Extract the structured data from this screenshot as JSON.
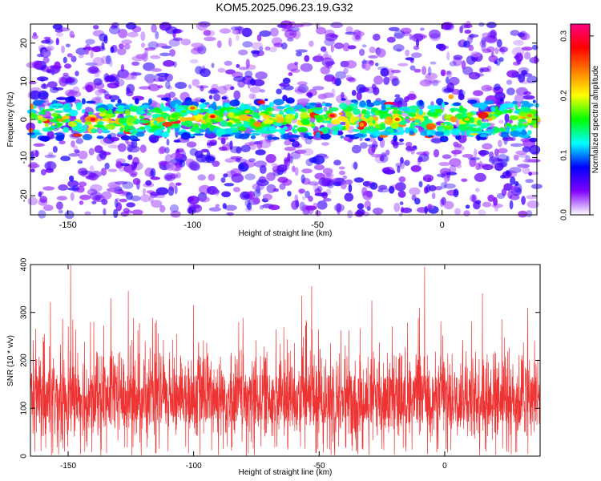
{
  "chart_data": [
    {
      "type": "heatmap",
      "title": "KOM5.2025.096.23.19.G32",
      "xlabel": "Height of straight line (km)",
      "ylabel": "Frequency (Hz)",
      "xlim": [
        -165,
        38
      ],
      "ylim": [
        -25,
        25
      ],
      "xticks": [
        -150,
        -100,
        -50,
        0
      ],
      "yticks": [
        -20,
        -10,
        0,
        10,
        20
      ],
      "band_center_hz": 0,
      "band_halfwidth_hz": 5,
      "peak_amplitude": 0.3,
      "colorbar": {
        "label": "Normalized spectral amplitude",
        "range": [
          0.0,
          0.32
        ],
        "ticks": [
          "0.0",
          "0.1",
          "0.2",
          "0.3"
        ],
        "tick_values": [
          0.0,
          0.1,
          0.2,
          0.3
        ],
        "colors": [
          "#ffffff",
          "#8000ff",
          "#0000ff",
          "#00ffff",
          "#00ff00",
          "#ffff00",
          "#ff8000",
          "#ff0000",
          "#ff0080"
        ]
      }
    },
    {
      "type": "line",
      "xlabel": "Height of straight line (km)",
      "ylabel": "SNR (10 * v/v)",
      "xlim": [
        -165,
        38
      ],
      "ylim": [
        0,
        400
      ],
      "xticks": [
        -150,
        -100,
        -50,
        0
      ],
      "yticks": [
        0,
        100,
        200,
        300,
        400
      ],
      "line_color": "#ee3333",
      "typical_range": [
        40,
        220
      ],
      "mean": 120,
      "spikes": [
        {
          "x": -149,
          "y": 400
        },
        {
          "x": -8,
          "y": 395
        },
        {
          "x": -157,
          "y": 322
        },
        {
          "x": -133,
          "y": 330
        },
        {
          "x": -126,
          "y": 345
        },
        {
          "x": -100,
          "y": 315
        },
        {
          "x": -57,
          "y": 335
        },
        {
          "x": -53,
          "y": 355
        },
        {
          "x": -29,
          "y": 325
        },
        {
          "x": -10,
          "y": 310
        },
        {
          "x": 15,
          "y": 340
        },
        {
          "x": 33,
          "y": 310
        }
      ]
    }
  ]
}
